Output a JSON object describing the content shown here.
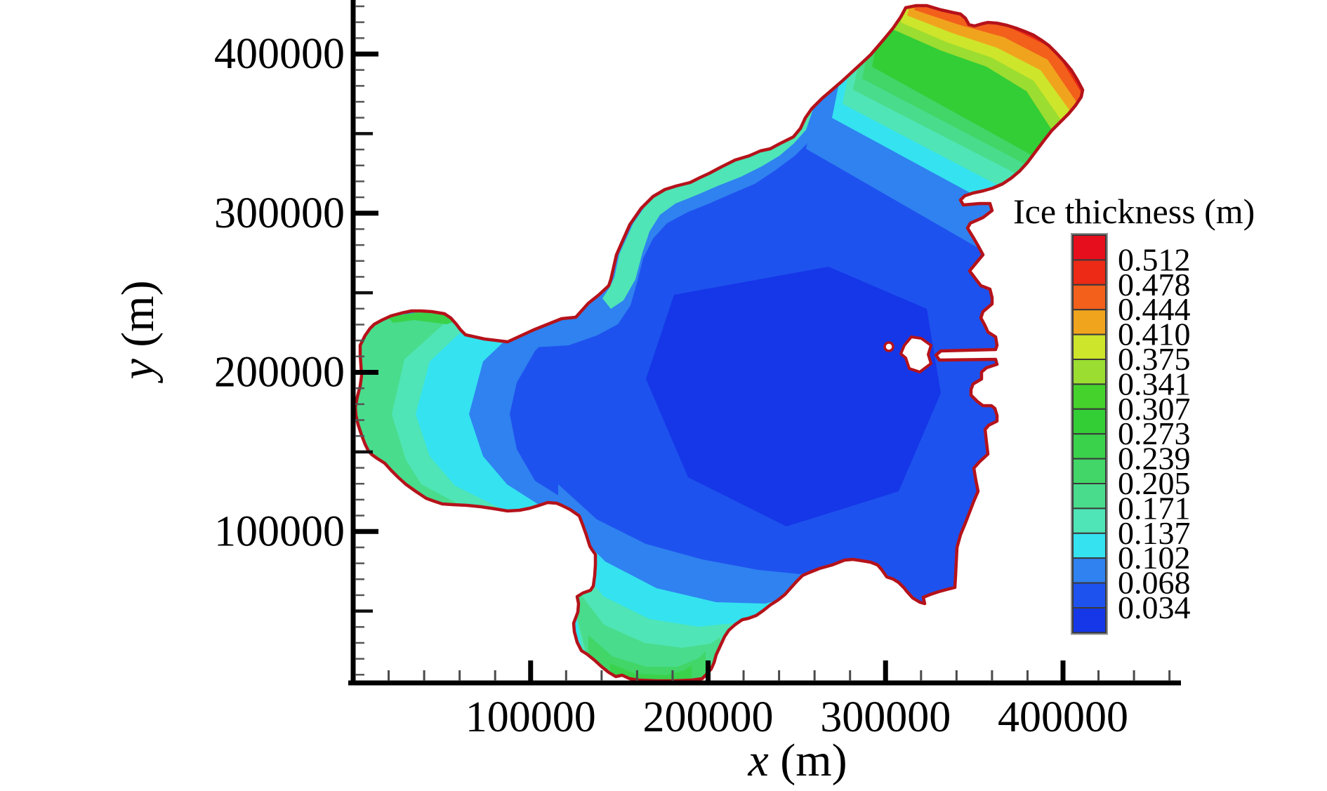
{
  "axes": {
    "x_var": "x",
    "x_unit": " (m)",
    "y_var": "y",
    "y_unit": " (m)"
  },
  "legend": {
    "title": "Ice thickness (m)",
    "labels_top_to_bottom": [
      "0.512",
      "0.478",
      "0.444",
      "0.410",
      "0.375",
      "0.341",
      "0.307",
      "0.273",
      "0.239",
      "0.205",
      "0.171",
      "0.137",
      "0.102",
      "0.068",
      "0.034"
    ]
  },
  "chart_data": {
    "type": "heatmap",
    "subtype": "filled-contour-map",
    "title": "",
    "xlabel": "x (m)",
    "ylabel": "y (m)",
    "legend_title": "Ice thickness (m)",
    "x_range": [
      0,
      468000
    ],
    "y_range": [
      0,
      434000
    ],
    "x_major_ticks": [
      100000,
      200000,
      300000,
      400000
    ],
    "x_tick_labels": [
      "100000",
      "200000",
      "300000",
      "400000"
    ],
    "x_minor_step": 20000,
    "y_major_ticks": [
      100000,
      200000,
      300000,
      400000
    ],
    "y_tick_labels": [
      "100000",
      "200000",
      "300000",
      "400000"
    ],
    "y_minor_step": 10000,
    "y_semi_step": 50000,
    "grid": false,
    "legend_position": "right",
    "contour_levels_m": [
      0.034,
      0.068,
      0.102,
      0.137,
      0.171,
      0.205,
      0.239,
      0.273,
      0.307,
      0.341,
      0.375,
      0.41,
      0.444,
      0.478,
      0.512
    ],
    "palette_low_to_high": [
      "#1537e8",
      "#1e52ee",
      "#2f82f0",
      "#35e2f0",
      "#4fe5b6",
      "#49dc8c",
      "#41d667",
      "#3ad24b",
      "#33cd36",
      "#45d22c",
      "#9bdd30",
      "#cde52b",
      "#f0a41d",
      "#f2601b",
      "#ec2a15",
      "#e60e1c"
    ],
    "coastline_color": "#b5121a",
    "features": [
      {
        "region": "central and eastern basin",
        "ice_thickness_m": "below 0.068"
      },
      {
        "region": "western bay (near x=0-120000, y=120000-230000)",
        "ice_thickness_m": "0.068 to 0.239, increasing toward the west shore"
      },
      {
        "region": "southern bay (near x=130000-250000, y=0-110000)",
        "ice_thickness_m": "0.068 to 0.239, increasing toward the south shore"
      },
      {
        "region": "northeastern arm (x=250000-420000, y=300000-430000)",
        "ice_thickness_m": "0.068 at the base grading to above 0.512 at the northeast tip"
      }
    ]
  }
}
